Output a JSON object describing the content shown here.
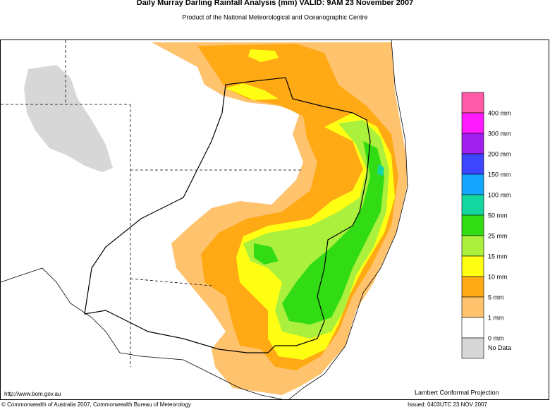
{
  "header": {
    "title": "Daily Murray Darling Rainfall Analysis (mm)  VALID: 9AM 23 November 2007",
    "subtitle": "Product of the National Meteorological and Oceanographic Centre"
  },
  "legend": {
    "colors": [
      "#ff5aa8",
      "#ff1aff",
      "#a020f0",
      "#3c46ff",
      "#14a5ff",
      "#14d7a0",
      "#32dc14",
      "#aaf03c",
      "#ffff14",
      "#ffaa14",
      "#ffc36e",
      "#ffffff",
      "#d7d7d7"
    ],
    "labels": [
      "400 mm",
      "300 mm",
      "200 mm",
      "150 mm",
      "100 mm",
      "50 mm",
      "25 mm",
      "15 mm",
      "10 mm",
      "5 mm",
      "1 mm",
      "0 mm",
      "No Data"
    ]
  },
  "footer": {
    "url": "http://www.bom.gov.au",
    "projection": "Lambert Conformal Projection",
    "copyright": "© Commonwealth of Australia 2007, Commonwealth Bureau of Meteorology",
    "issued": "Issued: 0403UTC 23 NOV 2007"
  }
}
